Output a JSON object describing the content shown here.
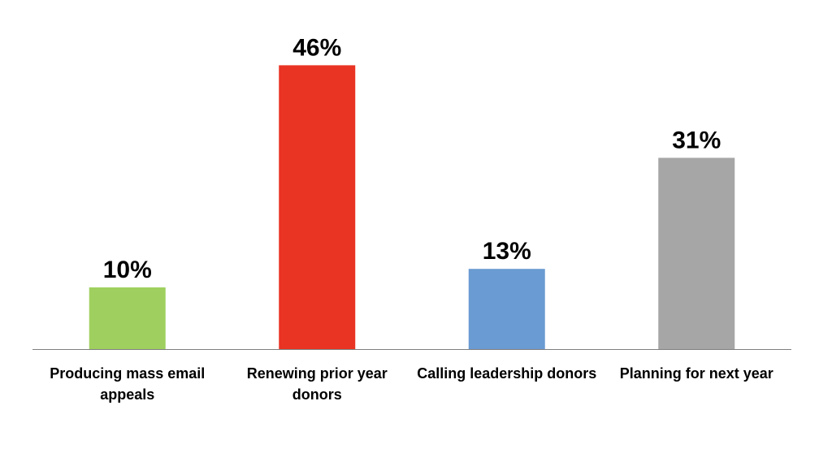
{
  "chart_data": {
    "type": "bar",
    "title": "",
    "xlabel": "",
    "ylabel": "",
    "ylim": [
      0,
      50
    ],
    "grid": false,
    "legend": "none",
    "categories": [
      [
        "Producing mass email",
        "appeals"
      ],
      [
        "Renewing prior year",
        "donors"
      ],
      [
        "Calling leadership donors"
      ],
      [
        "Planning for next year"
      ]
    ],
    "values": [
      10,
      46,
      13,
      31
    ],
    "value_labels": [
      "10%",
      "46%",
      "13%",
      "31%"
    ],
    "colors": [
      "#9fd05f",
      "#e93323",
      "#6a9bd2",
      "#a6a6a6"
    ]
  }
}
